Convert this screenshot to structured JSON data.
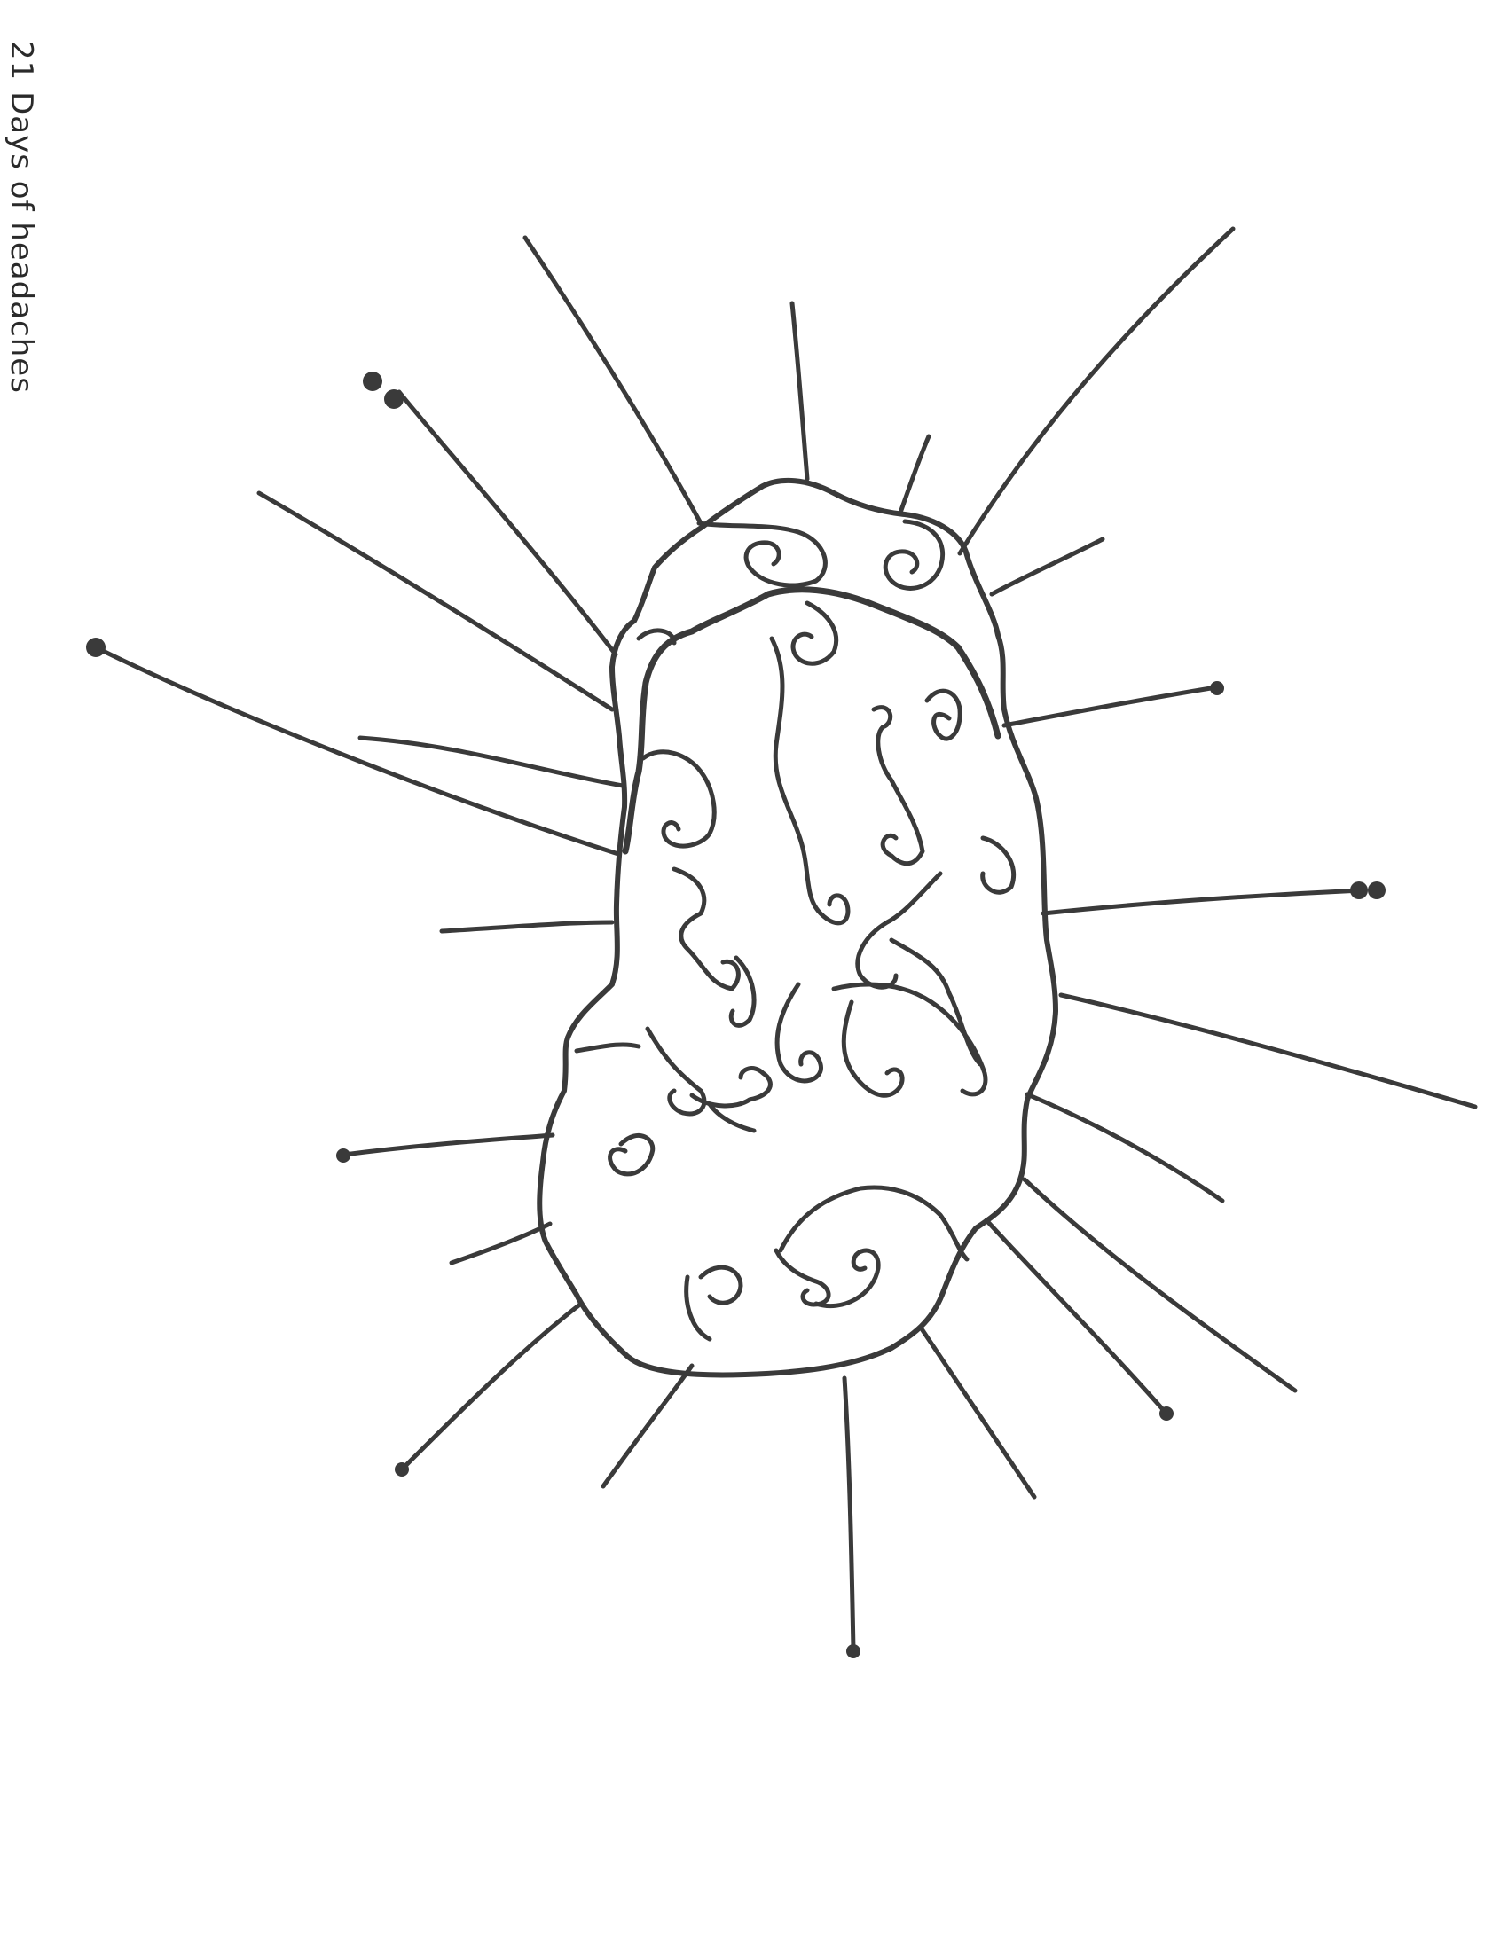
{
  "caption": "21 Days of headaches",
  "colors": {
    "ink": "#3a3a3a",
    "paper": "#ffffff"
  }
}
